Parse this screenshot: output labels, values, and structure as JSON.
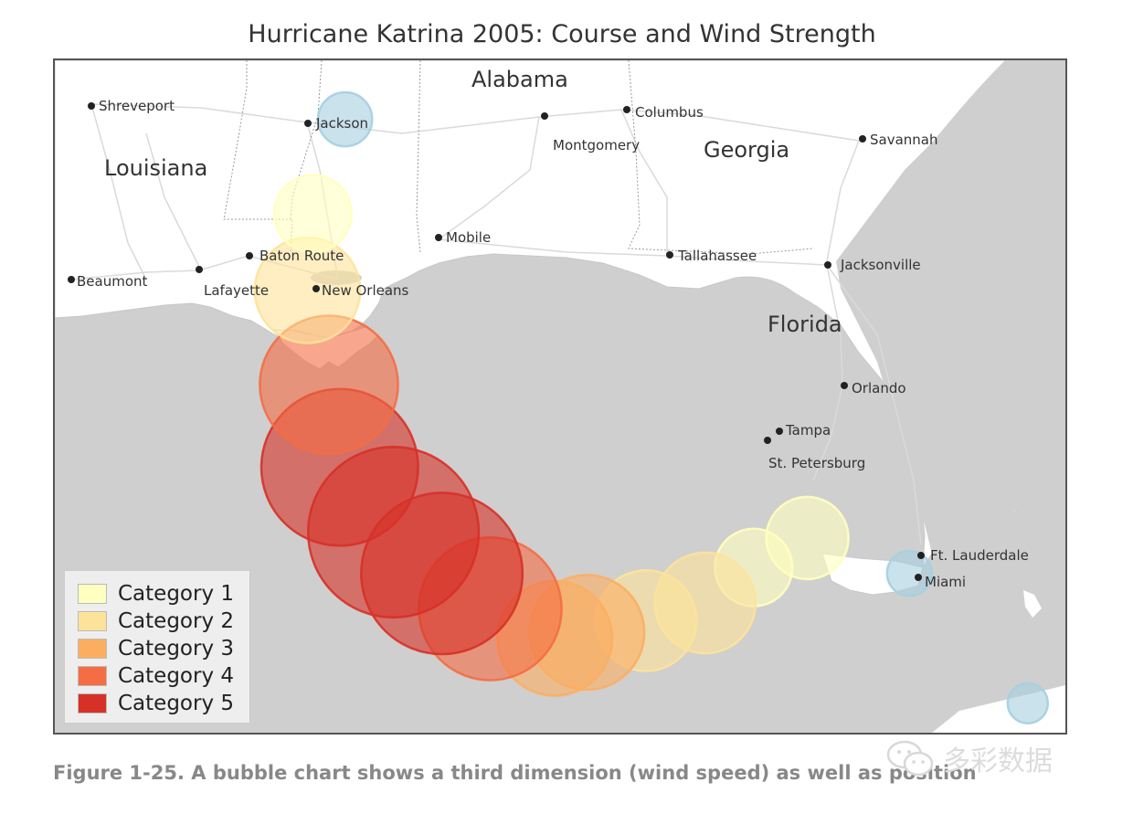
{
  "title": "Hurricane Katrina 2005: Course and Wind Strength",
  "caption": "Figure 1-25. A bubble chart shows a third dimension (wind speed) as well as position",
  "watermark": {
    "text": "多彩数据",
    "icon": "wechat-icon"
  },
  "map": {
    "states": [
      {
        "name": "Alabama"
      },
      {
        "name": "Georgia"
      },
      {
        "name": "Louisiana"
      },
      {
        "name": "Florida"
      }
    ],
    "cities": [
      {
        "name": "Shreveport"
      },
      {
        "name": "Jackson"
      },
      {
        "name": "Montgomery"
      },
      {
        "name": "Columbus"
      },
      {
        "name": "Savannah"
      },
      {
        "name": "Baton Route"
      },
      {
        "name": "Mobile"
      },
      {
        "name": "Tallahassee"
      },
      {
        "name": "Jacksonville"
      },
      {
        "name": "Beaumont"
      },
      {
        "name": "Lafayette"
      },
      {
        "name": "New Orleans"
      },
      {
        "name": "Orlando"
      },
      {
        "name": "Tampa"
      },
      {
        "name": "St. Petersburg"
      },
      {
        "name": "Ft. Lauderdale"
      },
      {
        "name": "Miami"
      }
    ],
    "colors": {
      "land": "#ffffff",
      "water": "#cfcfcf",
      "roads": "#d8d8d8",
      "borders": "#999999"
    }
  },
  "legend": {
    "items": [
      {
        "label": "Category 1",
        "color": "#ffffc0"
      },
      {
        "label": "Category 2",
        "color": "#fde39a"
      },
      {
        "label": "Category 3",
        "color": "#fcae60"
      },
      {
        "label": "Category 4",
        "color": "#f46d43"
      },
      {
        "label": "Category 5",
        "color": "#d73027"
      }
    ]
  },
  "chart_data": {
    "type": "bubble-map",
    "title": "Hurricane Katrina 2005: Course and Wind Strength",
    "size_encodes": "wind speed",
    "color_encodes": "category",
    "color_scale": {
      "TD": "#a6cfe0",
      "TS": "#a6cfe0",
      "1": "#ffffc0",
      "2": "#fde39a",
      "3": "#fcae60",
      "4": "#f46d43",
      "5": "#d73027"
    },
    "track": [
      {
        "category": "TD",
        "lon": -76.2,
        "lat": 23.2,
        "wind_mph": 35
      },
      {
        "category": "TS",
        "lon": -78.4,
        "lat": 25.4,
        "wind_mph": 40
      },
      {
        "category": "1",
        "lon": -80.3,
        "lat": 26.0,
        "wind_mph": 80
      },
      {
        "category": "1",
        "lon": -81.3,
        "lat": 25.5,
        "wind_mph": 75
      },
      {
        "category": "2",
        "lon": -82.2,
        "lat": 24.9,
        "wind_mph": 100
      },
      {
        "category": "2",
        "lon": -83.3,
        "lat": 24.6,
        "wind_mph": 100
      },
      {
        "category": "3",
        "lon": -84.4,
        "lat": 24.4,
        "wind_mph": 115
      },
      {
        "category": "3",
        "lon": -85.0,
        "lat": 24.3,
        "wind_mph": 115
      },
      {
        "category": "4",
        "lon": -86.2,
        "lat": 24.8,
        "wind_mph": 145
      },
      {
        "category": "5",
        "lon": -87.1,
        "lat": 25.4,
        "wind_mph": 165
      },
      {
        "category": "5",
        "lon": -88.0,
        "lat": 26.1,
        "wind_mph": 175
      },
      {
        "category": "5",
        "lon": -89.0,
        "lat": 27.2,
        "wind_mph": 160
      },
      {
        "category": "4",
        "lon": -89.2,
        "lat": 28.6,
        "wind_mph": 140
      },
      {
        "category": "2",
        "lon": -89.6,
        "lat": 30.2,
        "wind_mph": 105
      },
      {
        "category": "1",
        "lon": -89.5,
        "lat": 31.5,
        "wind_mph": 75
      },
      {
        "category": "TS",
        "lon": -88.9,
        "lat": 33.1,
        "wind_mph": 50
      }
    ]
  }
}
